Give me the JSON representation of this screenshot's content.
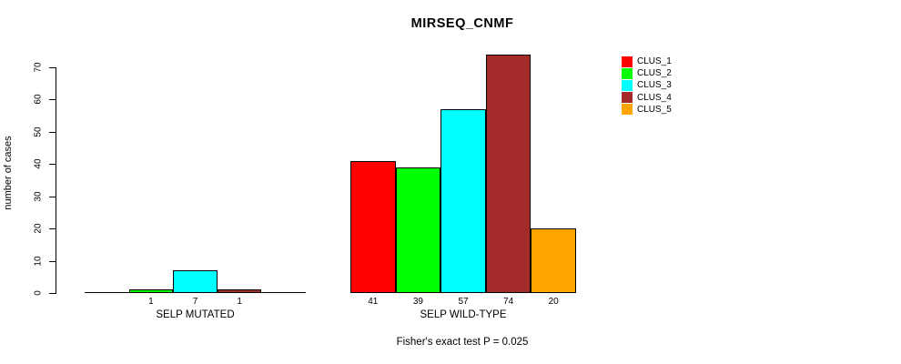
{
  "chart_data": {
    "type": "bar",
    "title": "MIRSEQ_CNMF",
    "ylabel": "number of cases",
    "xlabel": "",
    "ylim": [
      0,
      70
    ],
    "yticks": [
      0,
      10,
      20,
      30,
      40,
      50,
      60,
      70
    ],
    "grid": false,
    "legend_position": "right",
    "categories": [
      "SELP MUTATED",
      "SELP WILD-TYPE"
    ],
    "series": [
      {
        "name": "CLUS_1",
        "color": "#ff0000",
        "values": [
          0,
          41
        ]
      },
      {
        "name": "CLUS_2",
        "color": "#00ff00",
        "values": [
          1,
          39
        ]
      },
      {
        "name": "CLUS_3",
        "color": "#00ffff",
        "values": [
          7,
          57
        ]
      },
      {
        "name": "CLUS_4",
        "color": "#a52a2a",
        "values": [
          1,
          74
        ]
      },
      {
        "name": "CLUS_5",
        "color": "#ffa500",
        "values": [
          0,
          20
        ]
      }
    ],
    "bar_value_labels_shown_only_for_nonzero": true,
    "annotation": "Fisher's exact test P = 0.025"
  }
}
